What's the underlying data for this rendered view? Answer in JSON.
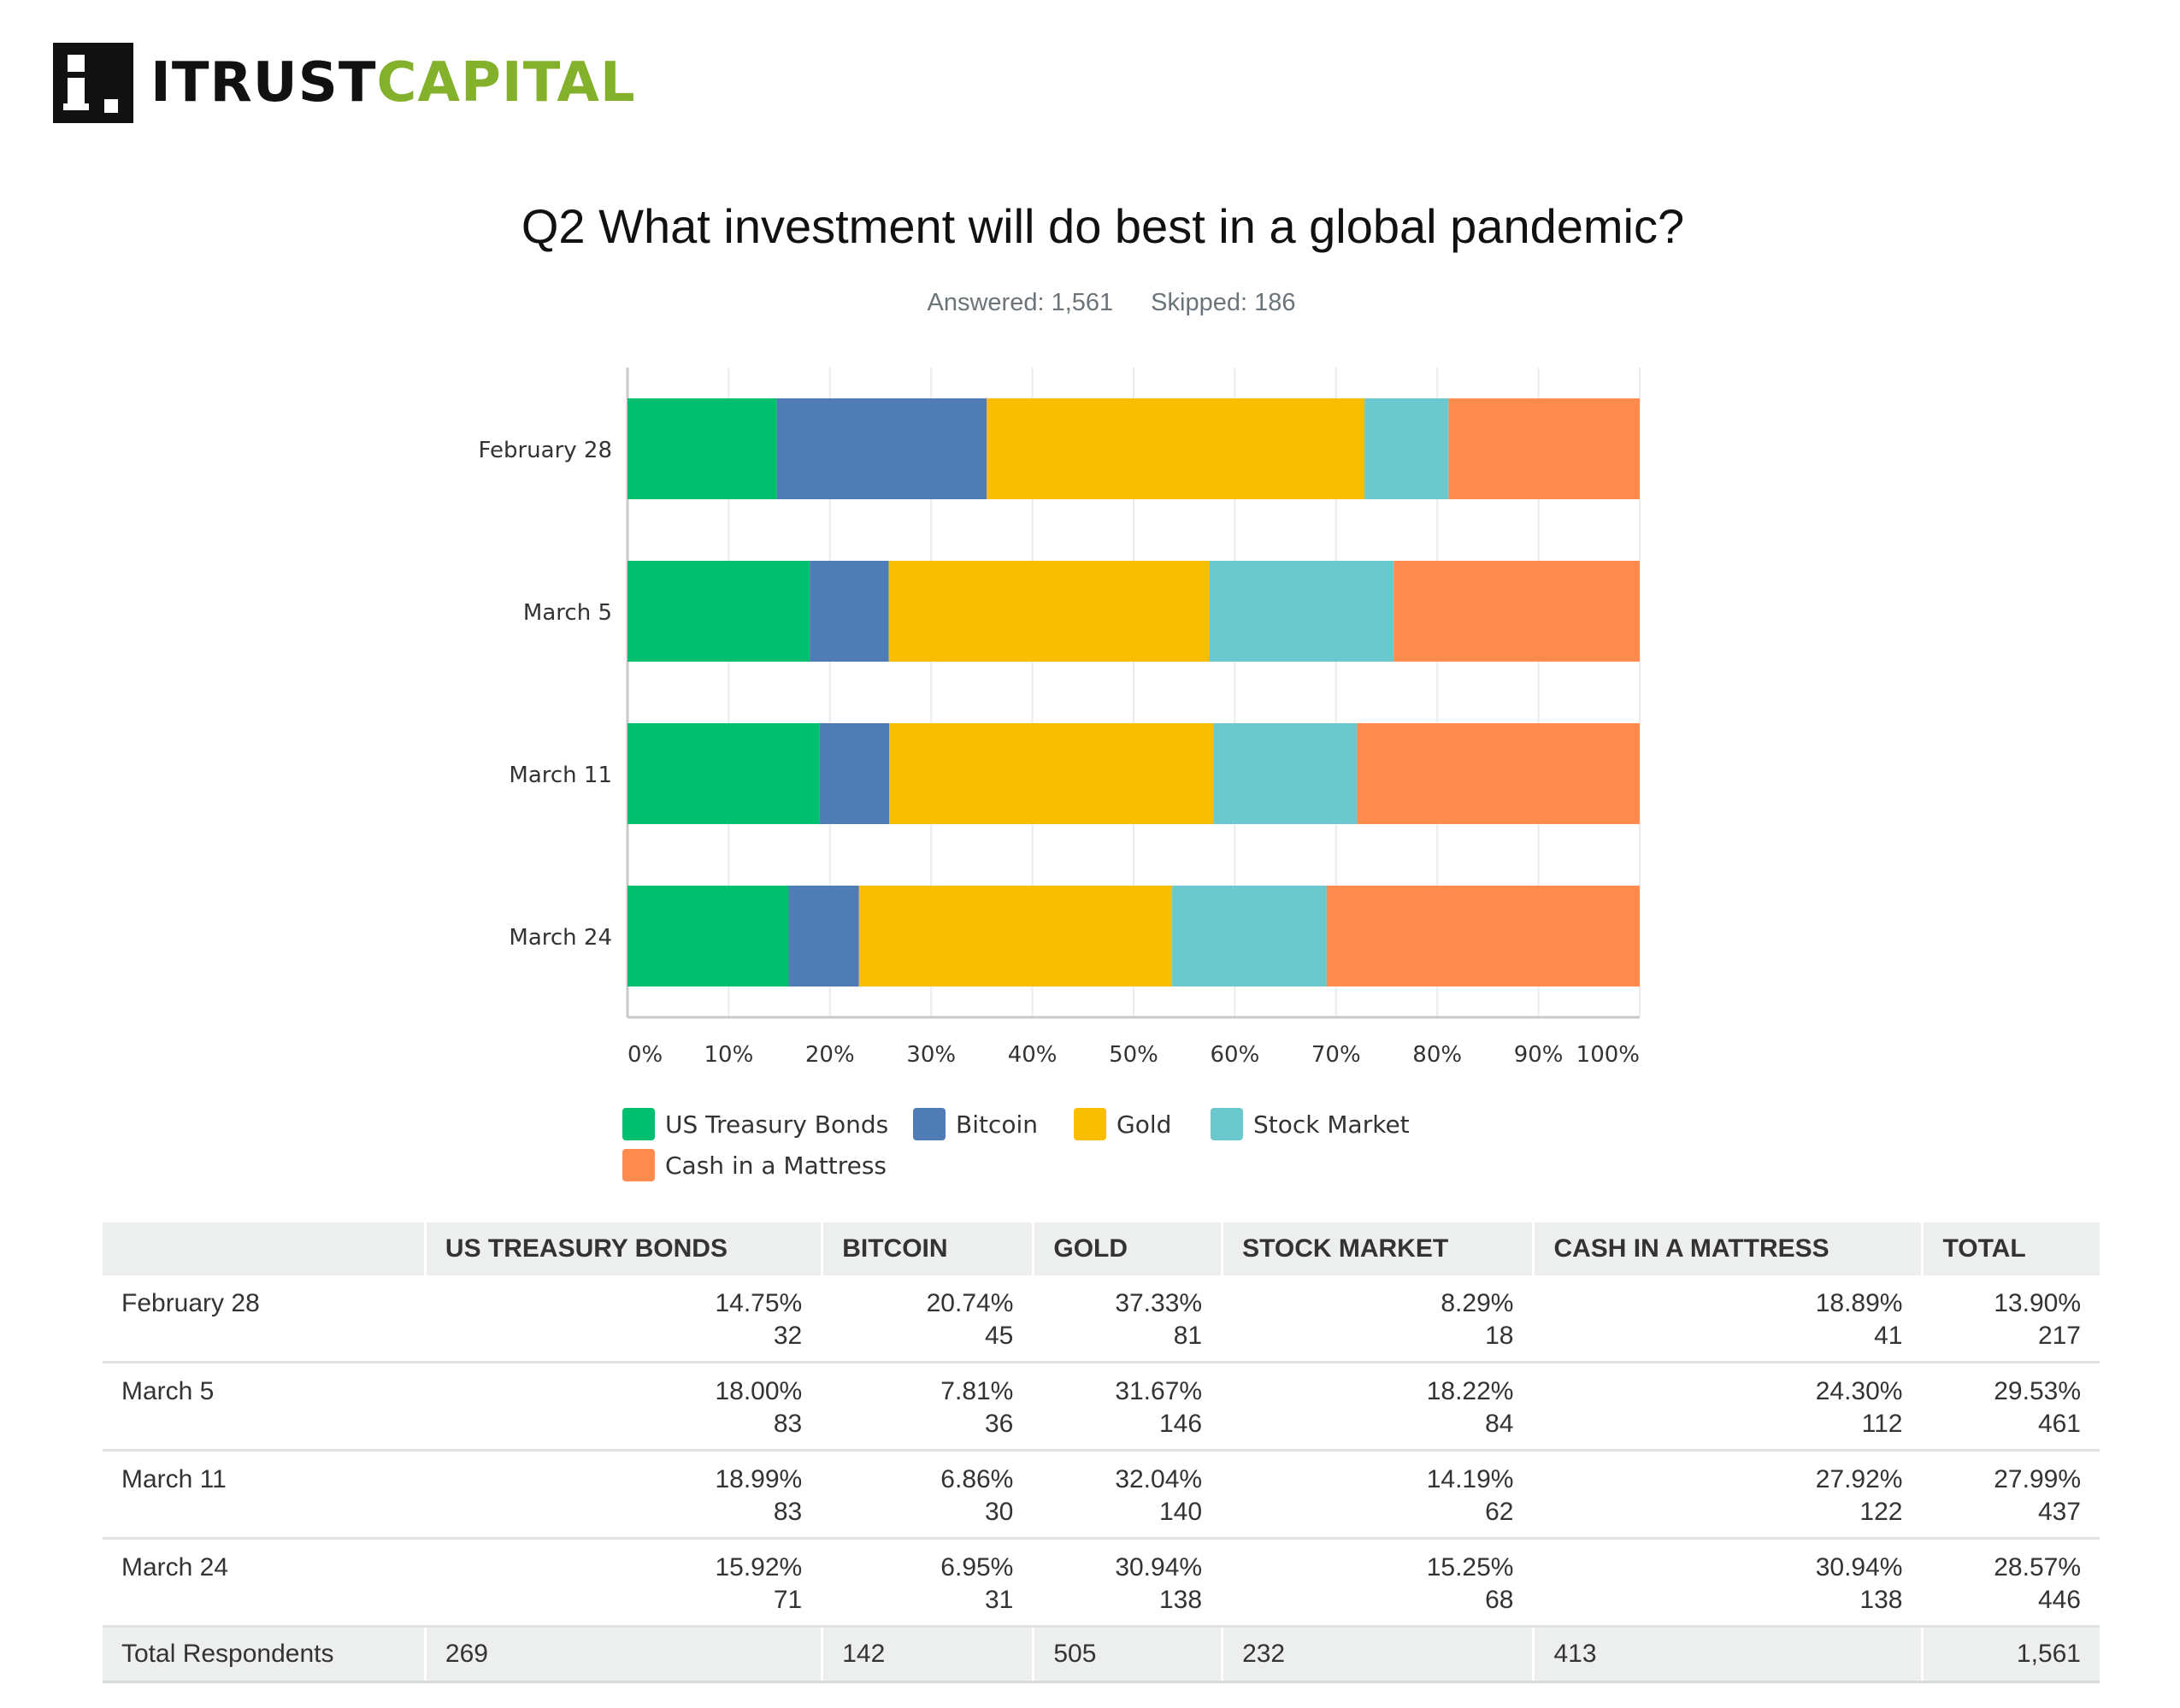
{
  "logo": {
    "mark": "i",
    "text_dark": "ITRUST",
    "text_green": "CAPITAL",
    "icon": "itrustcapital-logo-icon"
  },
  "header": {
    "title": "Q2 What investment will do best in a global pandemic?",
    "answered": "Answered: 1,561",
    "skipped": "Skipped: 186"
  },
  "chart_data": {
    "type": "bar",
    "orientation": "horizontal",
    "stacked": "100%",
    "categories": [
      "February 28",
      "March 5",
      "March 11",
      "March 24"
    ],
    "series": [
      {
        "name": "US Treasury Bonds",
        "color": "#00bf6f",
        "values": [
          14.75,
          18.0,
          18.99,
          15.92
        ]
      },
      {
        "name": "Bitcoin",
        "color": "#507cb6",
        "values": [
          20.74,
          7.81,
          6.86,
          6.95
        ]
      },
      {
        "name": "Gold",
        "color": "#f9be00",
        "values": [
          37.33,
          31.67,
          32.04,
          30.94
        ]
      },
      {
        "name": "Stock Market",
        "color": "#6bc8cd",
        "values": [
          8.29,
          18.22,
          14.19,
          15.25
        ]
      },
      {
        "name": "Cash in a Mattress",
        "color": "#ff8b4f",
        "values": [
          18.89,
          24.3,
          27.92,
          30.94
        ]
      }
    ],
    "xlim": [
      0,
      100
    ],
    "xticks": [
      "0%",
      "10%",
      "20%",
      "30%",
      "40%",
      "50%",
      "60%",
      "70%",
      "80%",
      "90%",
      "100%"
    ],
    "grid": true,
    "legend": "bottom"
  },
  "table": {
    "headers": [
      "",
      "US TREASURY BONDS",
      "BITCOIN",
      "GOLD",
      "STOCK MARKET",
      "CASH IN A MATTRESS",
      "TOTAL"
    ],
    "rows": [
      {
        "label": "February 28",
        "cells": [
          [
            "14.75%",
            "32"
          ],
          [
            "20.74%",
            "45"
          ],
          [
            "37.33%",
            "81"
          ],
          [
            "8.29%",
            "18"
          ],
          [
            "18.89%",
            "41"
          ],
          [
            "13.90%",
            "217"
          ]
        ]
      },
      {
        "label": "March 5",
        "cells": [
          [
            "18.00%",
            "83"
          ],
          [
            "7.81%",
            "36"
          ],
          [
            "31.67%",
            "146"
          ],
          [
            "18.22%",
            "84"
          ],
          [
            "24.30%",
            "112"
          ],
          [
            "29.53%",
            "461"
          ]
        ]
      },
      {
        "label": "March 11",
        "cells": [
          [
            "18.99%",
            "83"
          ],
          [
            "6.86%",
            "30"
          ],
          [
            "32.04%",
            "140"
          ],
          [
            "14.19%",
            "62"
          ],
          [
            "27.92%",
            "122"
          ],
          [
            "27.99%",
            "437"
          ]
        ]
      },
      {
        "label": "March 24",
        "cells": [
          [
            "15.92%",
            "71"
          ],
          [
            "6.95%",
            "31"
          ],
          [
            "30.94%",
            "138"
          ],
          [
            "15.25%",
            "68"
          ],
          [
            "30.94%",
            "138"
          ],
          [
            "28.57%",
            "446"
          ]
        ]
      }
    ],
    "total": {
      "label": "Total Respondents",
      "values": [
        "269",
        "142",
        "505",
        "232",
        "413",
        "1,561"
      ]
    }
  }
}
